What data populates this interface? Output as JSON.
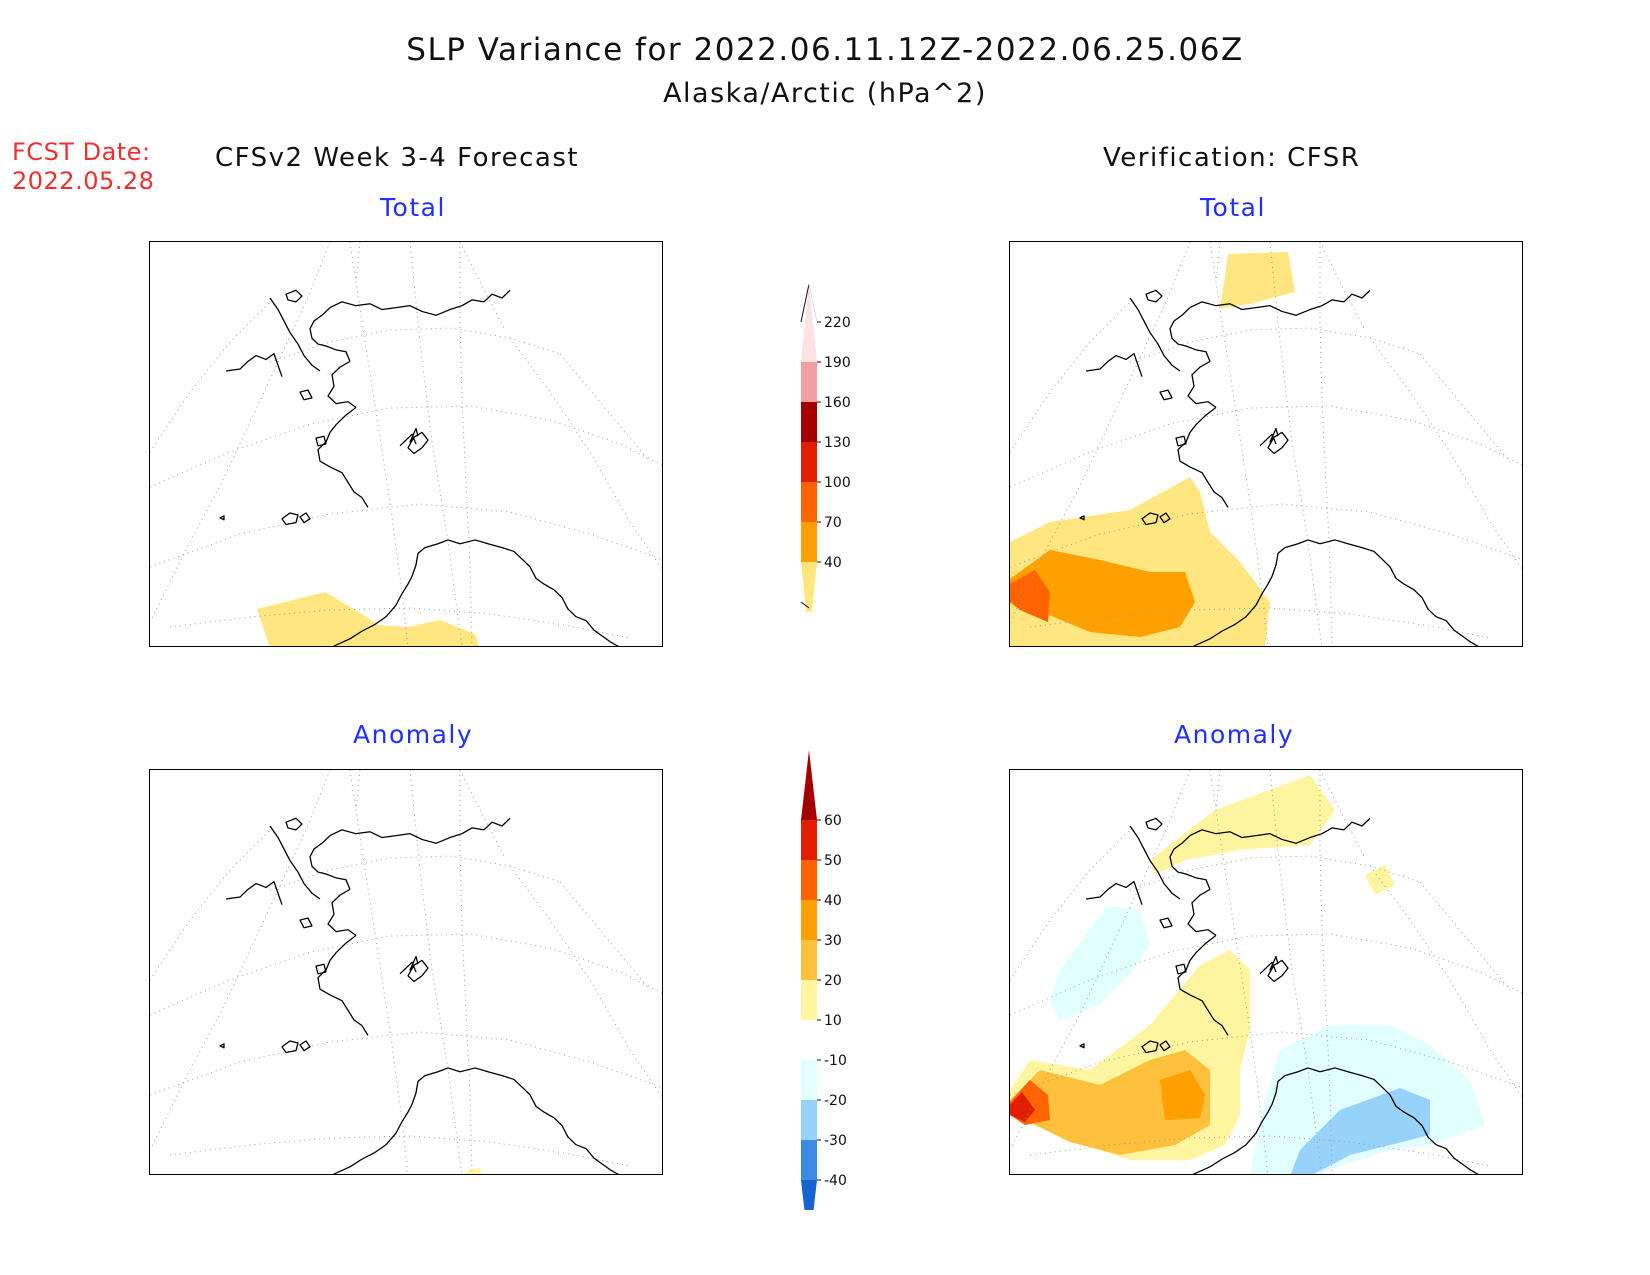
{
  "header": {
    "title_line1": "SLP Variance for 2022.06.11.12Z-2022.06.25.06Z",
    "title_line2": "Alaska/Arctic (hPa^2)"
  },
  "fcst_date": {
    "label": "FCST Date:",
    "value": "2022.05.28"
  },
  "columns": {
    "left_title": "CFSv2 Week 3-4 Forecast",
    "right_title": "Verification: CFSR"
  },
  "panels": {
    "fcst_total": {
      "title": "Total"
    },
    "ver_total": {
      "title": "Total"
    },
    "fcst_anomaly": {
      "title": "Anomaly"
    },
    "ver_anomaly": {
      "title": "Anomaly"
    }
  },
  "colorbars": {
    "total": {
      "labels": [
        "40",
        "70",
        "100",
        "130",
        "160",
        "190",
        "220"
      ],
      "colors": [
        "#ffe680",
        "#ffa000",
        "#ff6400",
        "#e11e00",
        "#a50000",
        "#f0a0a0",
        "#fde2e2"
      ]
    },
    "anomaly": {
      "labels": [
        "-40",
        "-30",
        "-20",
        "-10",
        "10",
        "20",
        "30",
        "40",
        "50",
        "60"
      ],
      "colors": [
        "#1464d2",
        "#3c8ce6",
        "#96d2fa",
        "#e1ffff",
        "#ffffff",
        "#fff5a0",
        "#ffc03c",
        "#ffa000",
        "#ff6400",
        "#e11e00",
        "#a50000"
      ]
    }
  },
  "map": {
    "region": "Alaska/Arctic",
    "coastline_color": "#000000",
    "gridline_color": "#999999"
  }
}
